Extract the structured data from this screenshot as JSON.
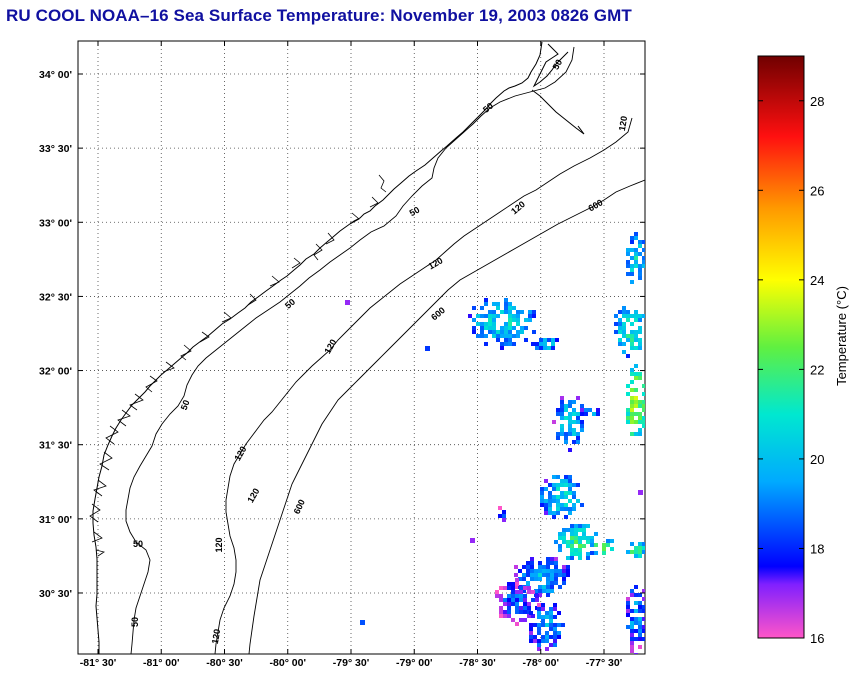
{
  "title": "RU COOL  NOAA–16  Sea Surface Temperature:  November 19, 2003 0826 GMT",
  "map": {
    "lon_ticks": [
      "-81° 30'",
      "-81° 00'",
      "-80° 30'",
      "-80° 00'",
      "-79° 30'",
      "-79° 00'",
      "-78° 30'",
      "-78° 00'",
      "-77° 30'"
    ],
    "lat_ticks": [
      "34° 00'",
      "33° 30'",
      "33° 00'",
      "32° 30'",
      "32° 00'",
      "31° 30'",
      "31° 00'",
      "30° 30'"
    ],
    "lon_values": [
      -81.5,
      -81.0,
      -80.5,
      -80.0,
      -79.5,
      -79.0,
      -78.5,
      -78.0,
      -77.5
    ],
    "lat_values": [
      34.0,
      33.5,
      33.0,
      32.5,
      32.0,
      31.5,
      31.0,
      30.5
    ],
    "lon_range": [
      -81.65,
      -77.5
    ],
    "lat_range": [
      30.2,
      34.2
    ],
    "isobaths": [
      "50",
      "120",
      "600"
    ],
    "contour_labels": [
      "50",
      "50",
      "50",
      "50",
      "50",
      "50",
      "50",
      "120",
      "120",
      "120",
      "120",
      "120",
      "120",
      "120",
      "120",
      "600",
      "600",
      "600"
    ],
    "grid": true
  },
  "colorbar": {
    "label": "Temperature (°C)",
    "ticks": [
      "28",
      "26",
      "24",
      "22",
      "20",
      "18",
      "16"
    ],
    "tick_values": [
      28,
      26,
      24,
      22,
      20,
      18,
      16
    ],
    "range": [
      16,
      29
    ],
    "stops": [
      {
        "value": 16,
        "color": "#ff55c8"
      },
      {
        "value": 17.2,
        "color": "#8020ff"
      },
      {
        "value": 17.6,
        "color": "#0000ff"
      },
      {
        "value": 19.5,
        "color": "#00aaff"
      },
      {
        "value": 21,
        "color": "#00e8d0"
      },
      {
        "value": 22.5,
        "color": "#60f040"
      },
      {
        "value": 24,
        "color": "#ffff00"
      },
      {
        "value": 25.6,
        "color": "#ff9900"
      },
      {
        "value": 27.2,
        "color": "#ff1010"
      },
      {
        "value": 29,
        "color": "#700000"
      }
    ]
  }
}
